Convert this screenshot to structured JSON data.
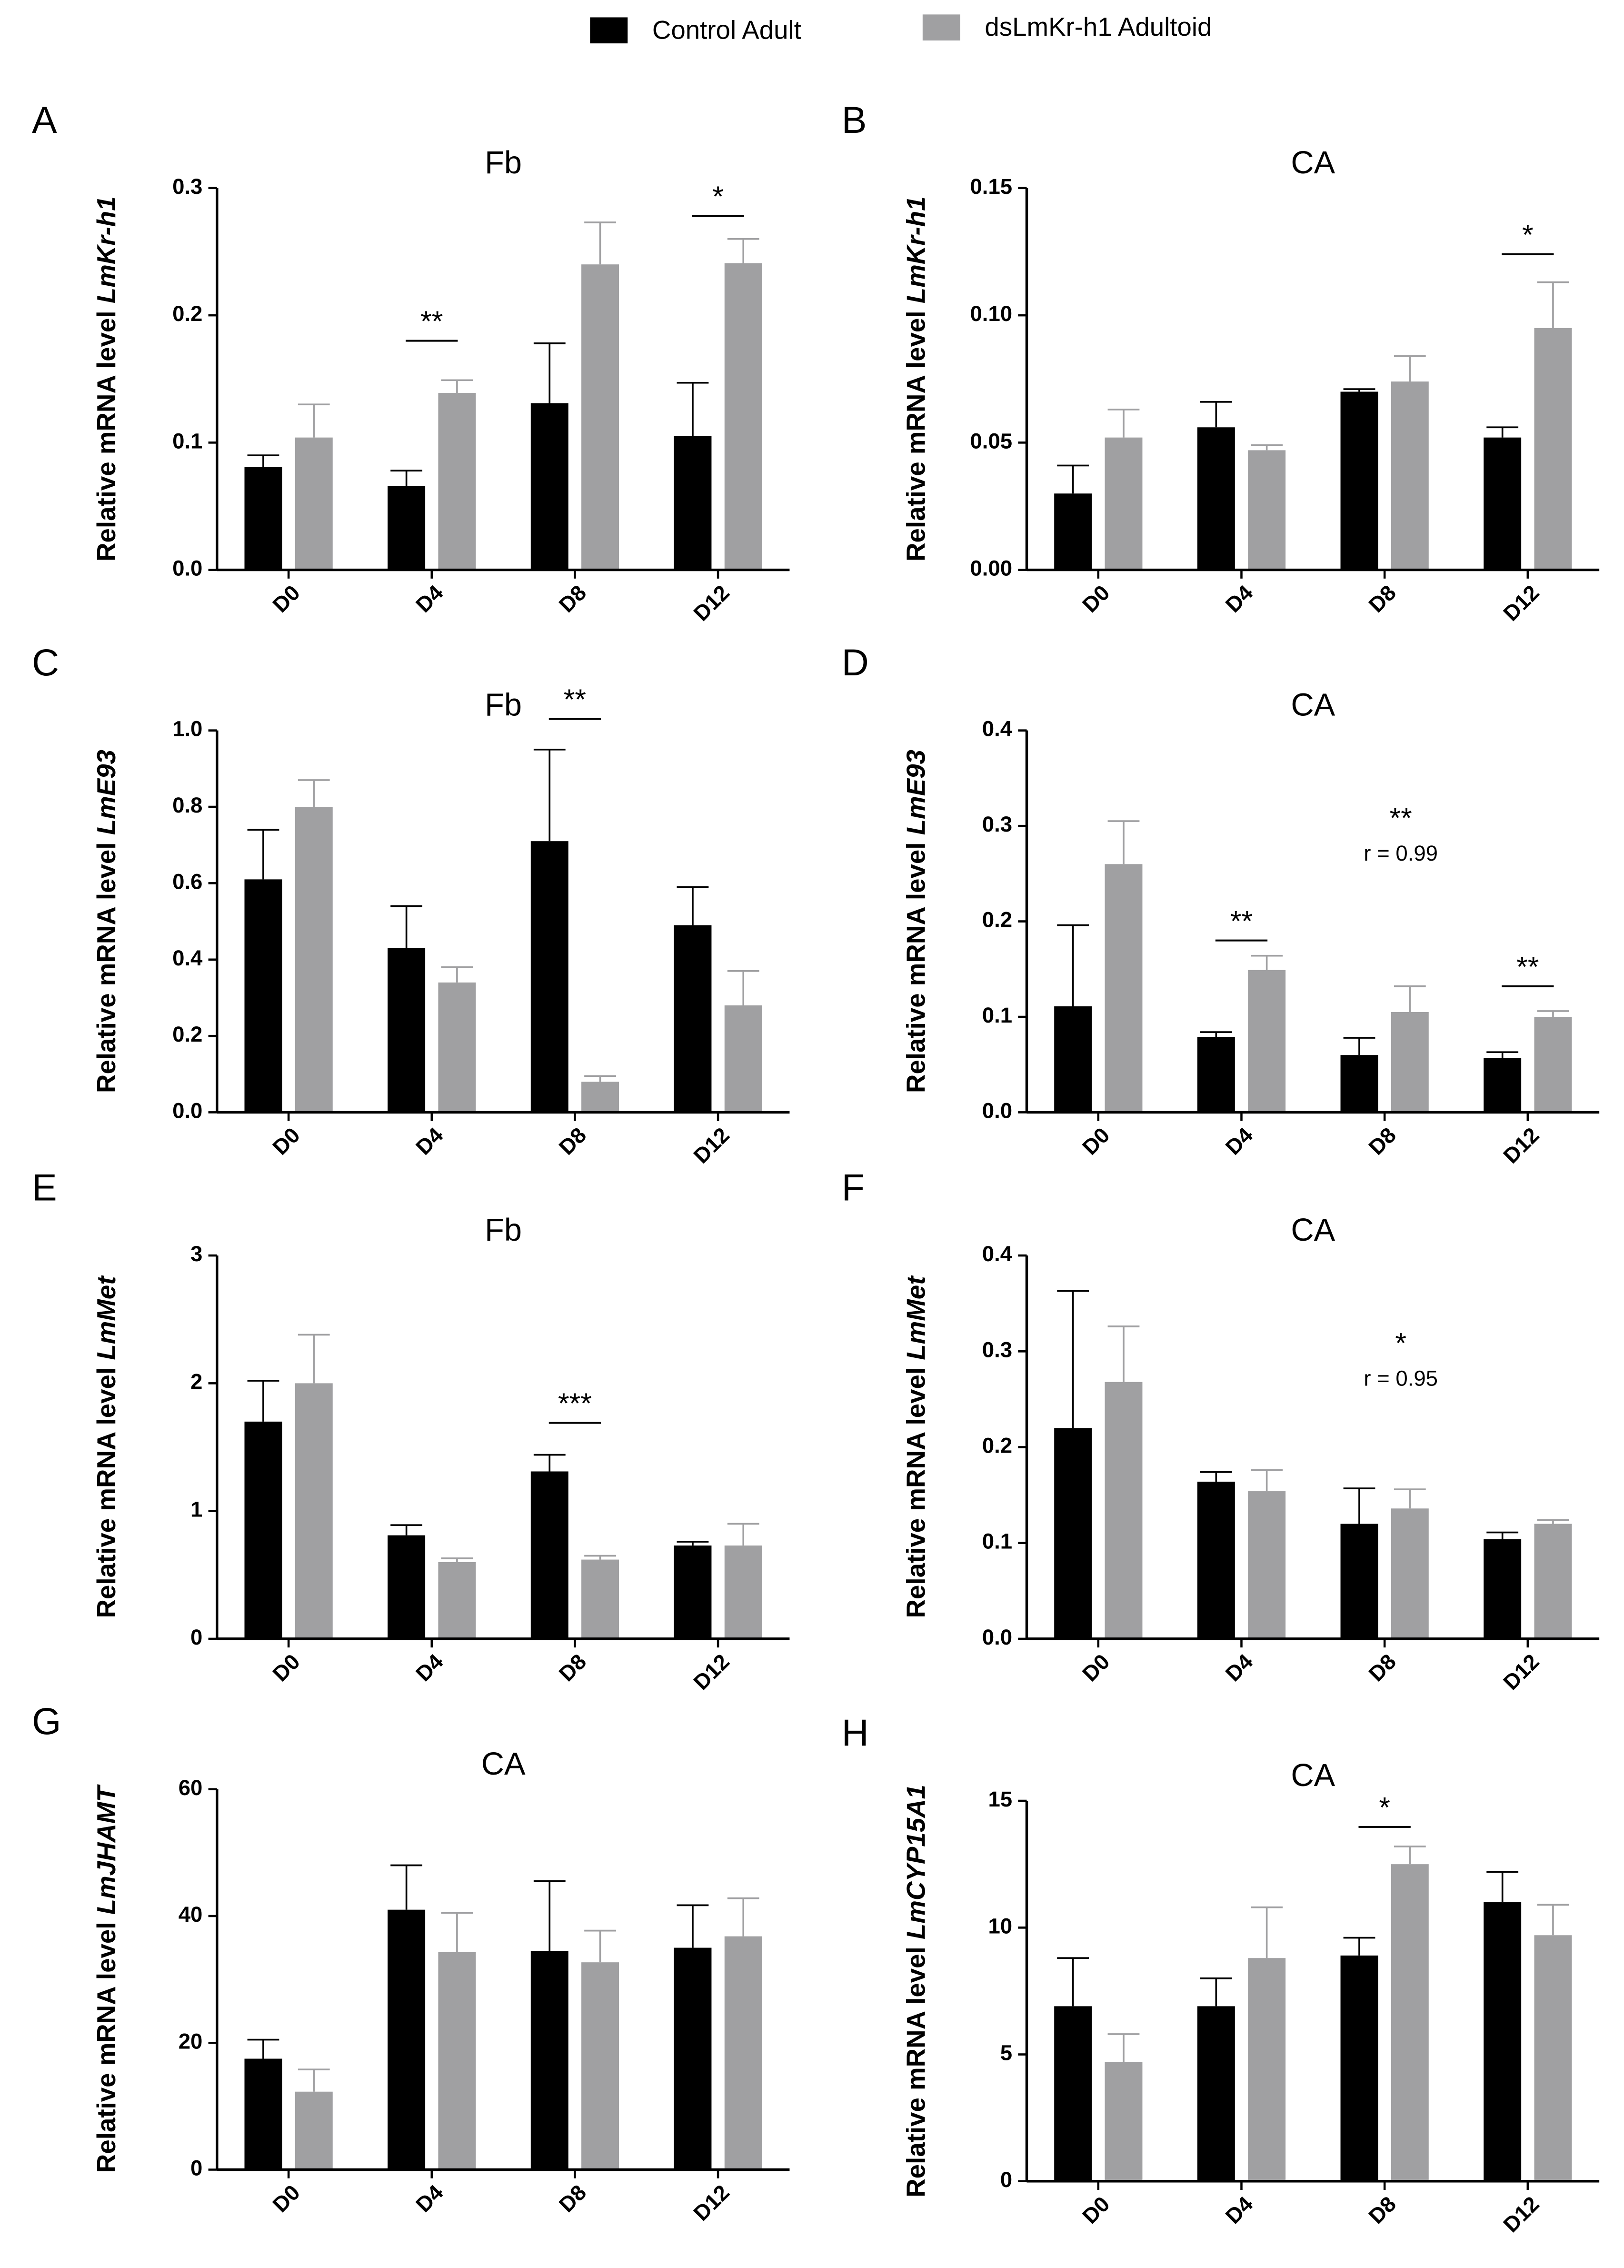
{
  "legend": [
    {
      "name": "Control Adult",
      "color": "#000000"
    },
    {
      "name": "dsLmKr-h1 Adultoid",
      "color": "#a0a0a2"
    }
  ],
  "chart_data": [
    {
      "type": "bar",
      "letter": "A",
      "title": "Fb",
      "ylabel": "Relative mRNA level",
      "gene": "LmKr-h1",
      "categories": [
        "D0",
        "D4",
        "D8",
        "D12"
      ],
      "series": [
        {
          "values": [
            0.081,
            0.066,
            0.131,
            0.105
          ],
          "errors": [
            0.009,
            0.012,
            0.047,
            0.042
          ]
        },
        {
          "values": [
            0.104,
            0.139,
            0.24,
            0.241
          ],
          "errors": [
            0.026,
            0.01,
            0.033,
            0.019
          ]
        }
      ],
      "ylim": [
        0,
        0.3
      ],
      "yticks": [
        {
          "value": 0,
          "label": "0.0"
        },
        {
          "value": 0.1,
          "label": "0.1"
        },
        {
          "value": 0.2,
          "label": "0.2"
        },
        {
          "value": 0.3,
          "label": "0.3"
        }
      ],
      "significance": [
        {
          "category": "D4",
          "label": "**",
          "y": 0.18
        },
        {
          "category": "D12",
          "label": "*",
          "y": 0.278
        }
      ]
    },
    {
      "type": "bar",
      "letter": "B",
      "title": "CA",
      "ylabel": "Relative mRNA level",
      "gene": "LmKr-h1",
      "categories": [
        "D0",
        "D4",
        "D8",
        "D12"
      ],
      "series": [
        {
          "values": [
            0.03,
            0.056,
            0.07,
            0.052
          ],
          "errors": [
            0.011,
            0.01,
            0.001,
            0.004
          ]
        },
        {
          "values": [
            0.052,
            0.047,
            0.074,
            0.095
          ],
          "errors": [
            0.011,
            0.002,
            0.01,
            0.018
          ]
        }
      ],
      "ylim": [
        0,
        0.15
      ],
      "yticks": [
        {
          "value": 0,
          "label": "0.00"
        },
        {
          "value": 0.05,
          "label": "0.05"
        },
        {
          "value": 0.1,
          "label": "0.10"
        },
        {
          "value": 0.15,
          "label": "0.15"
        }
      ],
      "significance": [
        {
          "category": "D12",
          "label": "*",
          "y": 0.124
        }
      ]
    },
    {
      "type": "bar",
      "letter": "C",
      "title": "Fb",
      "ylabel": "Relative mRNA level",
      "gene": "LmE93",
      "categories": [
        "D0",
        "D4",
        "D8",
        "D12"
      ],
      "series": [
        {
          "values": [
            0.61,
            0.43,
            0.71,
            0.49
          ],
          "errors": [
            0.13,
            0.11,
            0.24,
            0.1
          ]
        },
        {
          "values": [
            0.8,
            0.34,
            0.08,
            0.28
          ],
          "errors": [
            0.07,
            0.04,
            0.015,
            0.09
          ]
        }
      ],
      "ylim": [
        0,
        1.0
      ],
      "yticks": [
        {
          "value": 0,
          "label": "0.0"
        },
        {
          "value": 0.2,
          "label": "0.2"
        },
        {
          "value": 0.4,
          "label": "0.4"
        },
        {
          "value": 0.6,
          "label": "0.6"
        },
        {
          "value": 0.8,
          "label": "0.8"
        },
        {
          "value": 1,
          "label": "1.0"
        }
      ],
      "significance": [
        {
          "category": "D8",
          "label": "**",
          "y": 1.03
        }
      ]
    },
    {
      "type": "bar",
      "letter": "D",
      "title": "CA",
      "ylabel": "Relative mRNA level",
      "gene": "LmE93",
      "categories": [
        "D0",
        "D4",
        "D8",
        "D12"
      ],
      "series": [
        {
          "values": [
            0.111,
            0.079,
            0.06,
            0.057
          ],
          "errors": [
            0.085,
            0.005,
            0.018,
            0.006
          ]
        },
        {
          "values": [
            0.26,
            0.149,
            0.105,
            0.1
          ],
          "errors": [
            0.045,
            0.015,
            0.027,
            0.006
          ]
        }
      ],
      "ylim": [
        0,
        0.4
      ],
      "yticks": [
        {
          "value": 0,
          "label": "0.0"
        },
        {
          "value": 0.1,
          "label": "0.1"
        },
        {
          "value": 0.2,
          "label": "0.2"
        },
        {
          "value": 0.3,
          "label": "0.3"
        },
        {
          "value": 0.4,
          "label": "0.4"
        }
      ],
      "significance": [
        {
          "category": "D4",
          "label": "**",
          "y": 0.18
        },
        {
          "category": "D12",
          "label": "**",
          "y": 0.132
        }
      ],
      "annotation": [
        "**",
        "r = 0.99"
      ]
    },
    {
      "type": "bar",
      "letter": "E",
      "title": "Fb",
      "ylabel": "Relative mRNA level",
      "gene": "LmMet",
      "categories": [
        "D0",
        "D4",
        "D8",
        "D12"
      ],
      "series": [
        {
          "values": [
            1.7,
            0.81,
            1.31,
            0.73
          ],
          "errors": [
            0.32,
            0.08,
            0.13,
            0.03
          ]
        },
        {
          "values": [
            2.0,
            0.6,
            0.62,
            0.73
          ],
          "errors": [
            0.38,
            0.03,
            0.03,
            0.17
          ]
        }
      ],
      "ylim": [
        0,
        3
      ],
      "yticks": [
        0,
        1,
        2,
        3
      ],
      "significance": [
        {
          "category": "D8",
          "label": "***",
          "y": 1.69
        }
      ]
    },
    {
      "type": "bar",
      "letter": "F",
      "title": "CA",
      "ylabel": "Relative mRNA level",
      "gene": "LmMet",
      "categories": [
        "D0",
        "D4",
        "D8",
        "D12"
      ],
      "series": [
        {
          "values": [
            0.22,
            0.164,
            0.12,
            0.104
          ],
          "errors": [
            0.143,
            0.01,
            0.037,
            0.007
          ]
        },
        {
          "values": [
            0.268,
            0.154,
            0.136,
            0.12
          ],
          "errors": [
            0.058,
            0.022,
            0.02,
            0.004
          ]
        }
      ],
      "ylim": [
        0,
        0.4
      ],
      "yticks": [
        {
          "value": 0,
          "label": "0.0"
        },
        {
          "value": 0.1,
          "label": "0.1"
        },
        {
          "value": 0.2,
          "label": "0.2"
        },
        {
          "value": 0.3,
          "label": "0.3"
        },
        {
          "value": 0.4,
          "label": "0.4"
        }
      ],
      "annotation": [
        "*",
        "r = 0.95"
      ]
    },
    {
      "type": "bar",
      "letter": "G",
      "title": "CA",
      "ylabel": "Relative mRNA level",
      "gene": "LmJHAMT",
      "categories": [
        "D0",
        "D4",
        "D8",
        "D12"
      ],
      "series": [
        {
          "values": [
            17.5,
            41,
            34.5,
            35
          ],
          "errors": [
            3,
            7,
            11,
            6.7
          ]
        },
        {
          "values": [
            12.3,
            34.3,
            32.7,
            36.8
          ],
          "errors": [
            3.5,
            6.2,
            5,
            6
          ]
        }
      ],
      "ylim": [
        0,
        60
      ],
      "yticks": [
        0,
        20,
        40,
        60
      ]
    },
    {
      "type": "bar",
      "letter": "H",
      "title": "CA",
      "ylabel": "Relative mRNA level",
      "gene": "LmCYP15A1",
      "categories": [
        "D0",
        "D4",
        "D8",
        "D12"
      ],
      "series": [
        {
          "values": [
            6.9,
            6.9,
            8.9,
            11.0
          ],
          "errors": [
            1.9,
            1.1,
            0.7,
            1.2
          ]
        },
        {
          "values": [
            4.7,
            8.8,
            12.5,
            9.7
          ],
          "errors": [
            1.1,
            2.0,
            0.7,
            1.2
          ]
        }
      ],
      "ylim": [
        0,
        15
      ],
      "yticks": [
        0,
        5,
        10,
        15
      ],
      "significance": [
        {
          "category": "D8",
          "label": "*",
          "y": 13.97
        }
      ]
    }
  ]
}
